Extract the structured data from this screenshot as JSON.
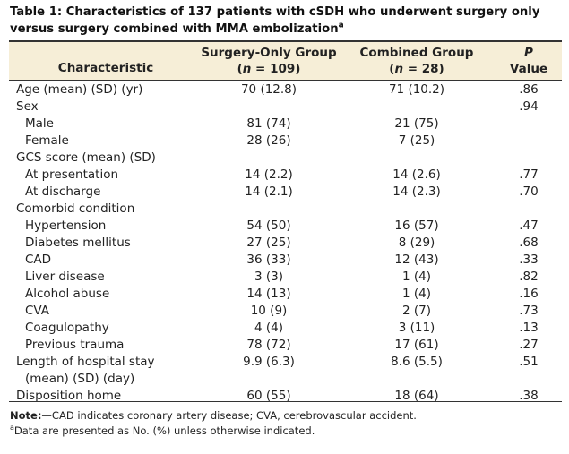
{
  "caption": {
    "title": "Table 1: Characteristics of 137 patients with cSDH who underwent surgery only versus surgery combined with MMA embolization",
    "footnote_marker": "a"
  },
  "header": {
    "characteristic": "Characteristic",
    "group1_name": "Surgery-Only Group",
    "group1_n_label": "n",
    "group1_n_value": " = 109)",
    "group2_name": "Combined Group",
    "group2_n_label": "n",
    "group2_n_value": " = 28)",
    "p_label": "P",
    "p_value_label": "Value",
    "open_paren": "("
  },
  "rows": [
    {
      "label": "Age (mean) (SD) (yr)",
      "g1": "70 (12.8)",
      "g2": "71 (10.2)",
      "p": ".86",
      "indent": false
    },
    {
      "label": "Sex",
      "g1": "",
      "g2": "",
      "p": ".94",
      "indent": false
    },
    {
      "label": "Male",
      "g1": "81 (74)",
      "g2": "21 (75)",
      "p": "",
      "indent": true
    },
    {
      "label": "Female",
      "g1": "28 (26)",
      "g2": "7 (25)",
      "p": "",
      "indent": true
    },
    {
      "label": "GCS score (mean) (SD)",
      "g1": "",
      "g2": "",
      "p": "",
      "indent": false
    },
    {
      "label": "At presentation",
      "g1": "14 (2.2)",
      "g2": "14 (2.6)",
      "p": ".77",
      "indent": true
    },
    {
      "label": "At discharge",
      "g1": "14 (2.1)",
      "g2": "14 (2.3)",
      "p": ".70",
      "indent": true
    },
    {
      "label": "Comorbid condition",
      "g1": "",
      "g2": "",
      "p": "",
      "indent": false
    },
    {
      "label": "Hypertension",
      "g1": "54 (50)",
      "g2": "16 (57)",
      "p": ".47",
      "indent": true
    },
    {
      "label": "Diabetes mellitus",
      "g1": "27 (25)",
      "g2": "8 (29)",
      "p": ".68",
      "indent": true
    },
    {
      "label": "CAD",
      "g1": "36 (33)",
      "g2": "12 (43)",
      "p": ".33",
      "indent": true
    },
    {
      "label": "Liver disease",
      "g1": "3 (3)",
      "g2": "1 (4)",
      "p": ".82",
      "indent": true
    },
    {
      "label": "Alcohol abuse",
      "g1": "14 (13)",
      "g2": "1 (4)",
      "p": ".16",
      "indent": true
    },
    {
      "label": "CVA",
      "g1": "10 (9)",
      "g2": "2 (7)",
      "p": ".73",
      "indent": true
    },
    {
      "label": "Coagulopathy",
      "g1": "4 (4)",
      "g2": "3 (11)",
      "p": ".13",
      "indent": true
    },
    {
      "label": "Previous trauma",
      "g1": "78 (72)",
      "g2": "17 (61)",
      "p": ".27",
      "indent": true
    },
    {
      "label": "Length of hospital stay",
      "g1": "9.9 (6.3)",
      "g2": "8.6 (5.5)",
      "p": ".51",
      "indent": false
    },
    {
      "label": "(mean) (SD) (day)",
      "g1": "",
      "g2": "",
      "p": "",
      "indent": true
    },
    {
      "label": "Disposition home",
      "g1": "60 (55)",
      "g2": "18 (64)",
      "p": ".38",
      "indent": false
    }
  ],
  "notes": {
    "note_label": "Note:",
    "note_text": "—CAD indicates coronary artery disease; CVA, cerebrovascular accident.",
    "footnote_marker": "a",
    "footnote_text": "Data are presented as No. (%) unless otherwise indicated."
  },
  "colors": {
    "header_band": "#f6eed7",
    "rule": "#333333",
    "text": "#222222"
  }
}
